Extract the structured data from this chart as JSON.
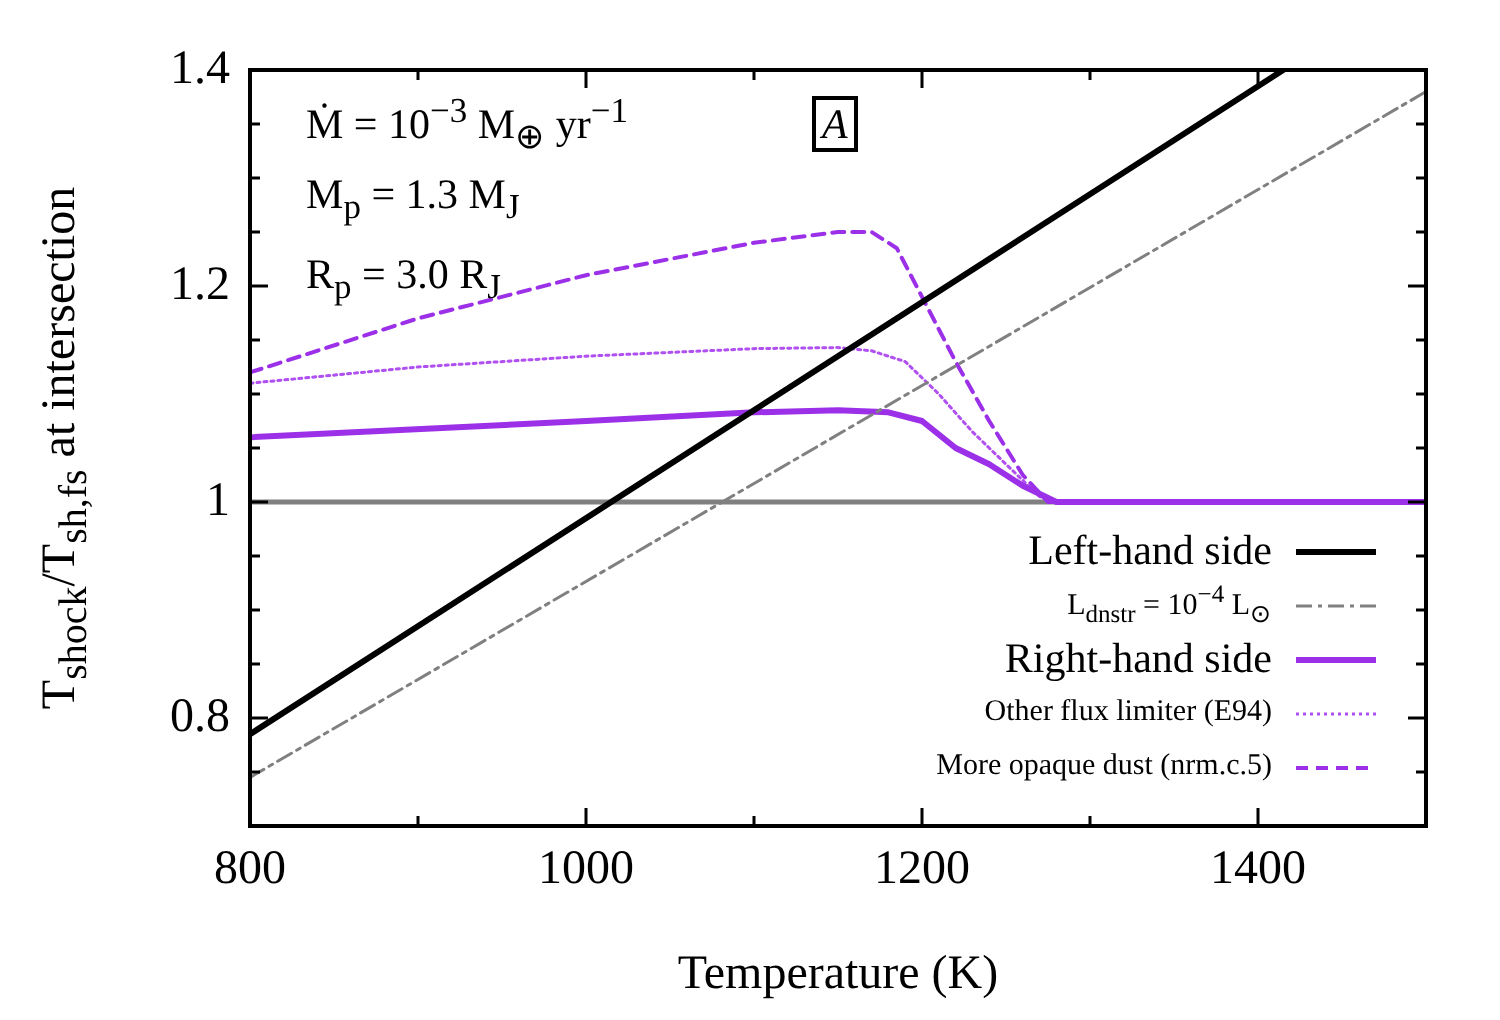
{
  "chart_data": {
    "type": "line",
    "xlabel": "Temperature (K)",
    "ylabel": "T$_{shock}$/T$_{sh,fs}$ at intersection",
    "xlim": [
      800,
      1500
    ],
    "xticks": [
      800,
      1000,
      1200,
      1400
    ],
    "ylim": [
      0.7,
      1.4
    ],
    "yticks": [
      0.8,
      1,
      1.2,
      1.4
    ],
    "grid": false,
    "legend": "bottom right",
    "marker": "none",
    "ref_lines": [
      {
        "axis": "y",
        "value": 1,
        "color": "#808080"
      }
    ],
    "annotations": [
      "Ṁ = 10$^{−3}$ M$_{⊕}$ yr$^{−1}$",
      "M$_{p}$ = 1.3 M$_{J}$",
      "R$_{p}$ = 3.0 R$_{J}$",
      "A"
    ],
    "series": [
      {
        "name": "Left-hand side",
        "color": "#000000",
        "line_style": "solid",
        "x": [
          800,
          1415
        ],
        "values": [
          0.785,
          1.4
        ]
      },
      {
        "name": "L$_{dnstr}$ = 10$^{−4}$ L$_{⊙}$",
        "color": "#808080",
        "line_style": "dashdot",
        "x": [
          800,
          1500
        ],
        "values": [
          0.745,
          1.38
        ]
      },
      {
        "name": "Right-hand side",
        "color": "#9b30e8",
        "line_style": "solid",
        "x": [
          800,
          1000,
          1100,
          1150,
          1180,
          1200,
          1220,
          1240,
          1260,
          1280,
          1500
        ],
        "values": [
          1.06,
          1.075,
          1.083,
          1.085,
          1.083,
          1.075,
          1.05,
          1.035,
          1.015,
          1.0,
          1.0
        ]
      },
      {
        "name": "Other flux limiter (E94)",
        "color": "#b050f0",
        "line_style": "dotted",
        "x": [
          800,
          900,
          1000,
          1100,
          1150,
          1170,
          1190,
          1210,
          1230,
          1250,
          1270,
          1280,
          1500
        ],
        "values": [
          1.11,
          1.125,
          1.135,
          1.142,
          1.143,
          1.14,
          1.13,
          1.1,
          1.065,
          1.035,
          1.005,
          1.0,
          1.0
        ]
      },
      {
        "name": "More opaque dust (nrm.c.5)",
        "color": "#9b30e8",
        "line_style": "dashed",
        "x": [
          800,
          900,
          1000,
          1100,
          1150,
          1170,
          1185,
          1200,
          1220,
          1240,
          1260,
          1275,
          1500
        ],
        "values": [
          1.12,
          1.17,
          1.21,
          1.24,
          1.25,
          1.25,
          1.235,
          1.19,
          1.13,
          1.075,
          1.025,
          1.0,
          1.0
        ]
      }
    ]
  }
}
